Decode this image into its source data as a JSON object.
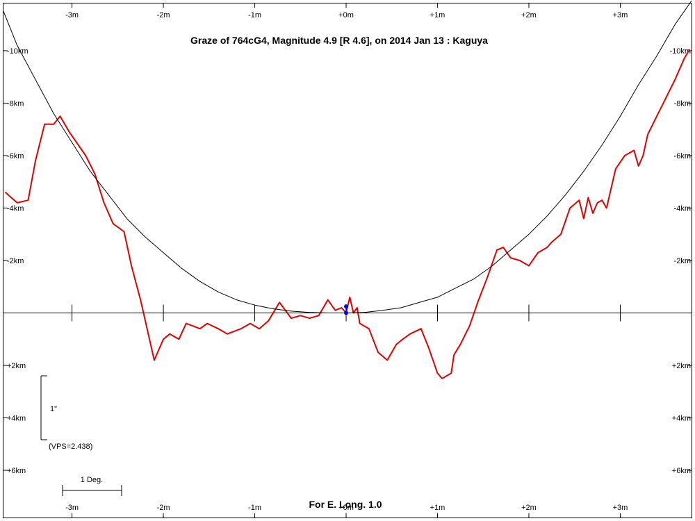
{
  "chart_data": {
    "type": "line",
    "title": "Graze of  764cG4,  Magnitude 4.9 [R 4.6],  on 2014 Jan 13  :  Kaguya",
    "footer": "For E. Long. 1.0",
    "x_tick_labels": [
      "-3m",
      "-2m",
      "-1m",
      "+0m",
      "+1m",
      "+2m",
      "+3m"
    ],
    "x_tick_values": [
      -3,
      -2,
      -1,
      0,
      1,
      2,
      3
    ],
    "xlim": [
      -3.75,
      3.78
    ],
    "y_tick_labels_left": [
      "-10km",
      "-8km",
      "-6km",
      "-4km",
      "-2km",
      "+2km",
      "+4km",
      "+6km"
    ],
    "y_tick_labels_right": [
      "-10km",
      "-8km",
      "-6km",
      "-4km",
      "-2km",
      "+2km",
      "+4km",
      "+6km"
    ],
    "y_tick_values": [
      -10,
      -8,
      -6,
      -4,
      -2,
      2,
      4,
      6
    ],
    "ylim": [
      -11.8,
      7.8
    ],
    "scale_bar": {
      "label": "1\"",
      "vps_label": "(VPS=2.438)"
    },
    "degree_bar": {
      "label": "1 Deg."
    },
    "series": [
      {
        "color": "#e00000",
        "x": [
          -3.73,
          -3.6,
          -3.48,
          -3.4,
          -3.3,
          -3.2,
          -3.13,
          -3.03,
          -2.95,
          -2.85,
          -2.75,
          -2.65,
          -2.55,
          -2.43,
          -2.35,
          -2.25,
          -2.1,
          -2.0,
          -1.93,
          -1.83,
          -1.75,
          -1.6,
          -1.52,
          -1.4,
          -1.3,
          -1.15,
          -1.05,
          -0.95,
          -0.85,
          -0.73,
          -0.6,
          -0.5,
          -0.4,
          -0.3,
          -0.25,
          -0.2,
          -0.12,
          -0.05,
          0.0,
          0.04,
          0.08,
          0.12,
          0.15,
          0.25,
          0.35,
          0.45,
          0.55,
          0.62,
          0.7,
          0.82,
          0.9,
          1.0,
          1.05,
          1.15,
          1.18,
          1.25,
          1.35,
          1.45,
          1.55,
          1.65,
          1.72,
          1.8,
          1.9,
          2.0,
          2.1,
          2.2,
          2.25,
          2.35,
          2.45,
          2.55,
          2.6,
          2.65,
          2.7,
          2.75,
          2.8,
          2.85,
          2.95,
          3.05,
          3.15,
          3.2,
          3.25,
          3.3,
          3.4,
          3.5,
          3.6,
          3.7,
          3.75
        ],
        "y": [
          -4.6,
          -4.2,
          -4.3,
          -5.8,
          -7.2,
          -7.2,
          -7.5,
          -6.9,
          -6.5,
          -6.0,
          -5.3,
          -4.2,
          -3.4,
          -3.1,
          -1.8,
          -0.5,
          1.8,
          1.0,
          0.8,
          1.0,
          0.4,
          0.6,
          0.4,
          0.6,
          0.8,
          0.6,
          0.4,
          0.6,
          0.3,
          -0.4,
          0.2,
          0.1,
          0.2,
          0.1,
          -0.2,
          -0.5,
          -0.1,
          -0.2,
          0.0,
          -0.6,
          0.0,
          -0.2,
          0.4,
          0.6,
          1.5,
          1.8,
          1.2,
          1.0,
          0.8,
          0.6,
          1.3,
          2.3,
          2.5,
          2.3,
          1.6,
          1.2,
          0.5,
          -0.5,
          -1.4,
          -2.4,
          -2.5,
          -2.1,
          -2.0,
          -1.8,
          -2.3,
          -2.5,
          -2.7,
          -3.0,
          -4.0,
          -4.3,
          -3.6,
          -4.4,
          -3.8,
          -4.2,
          -4.3,
          -4.0,
          -5.5,
          -6.0,
          -6.2,
          -5.6,
          -6.0,
          -6.8,
          -7.5,
          -8.2,
          -8.9,
          -9.7,
          -10.0
        ]
      },
      {
        "color": "#000000",
        "note": "limb",
        "x": [
          -3.75,
          -3.6,
          -3.4,
          -3.2,
          -3.0,
          -2.8,
          -2.6,
          -2.4,
          -2.2,
          -2.0,
          -1.8,
          -1.6,
          -1.4,
          -1.2,
          -1.0,
          -0.8,
          -0.6,
          -0.4,
          -0.2,
          0.0,
          0.2,
          0.4,
          0.6,
          0.8,
          1.0,
          1.2,
          1.4,
          1.6,
          1.8,
          2.0,
          2.2,
          2.4,
          2.6,
          2.8,
          3.0,
          3.2,
          3.4,
          3.6,
          3.78
        ],
        "y": [
          -11.5,
          -10.2,
          -8.9,
          -7.6,
          -6.5,
          -5.4,
          -4.5,
          -3.6,
          -2.9,
          -2.3,
          -1.7,
          -1.2,
          -0.8,
          -0.5,
          -0.3,
          -0.16,
          -0.07,
          -0.02,
          0.0,
          0.0,
          -0.02,
          -0.1,
          -0.2,
          -0.4,
          -0.6,
          -0.95,
          -1.3,
          -1.8,
          -2.4,
          -3.0,
          -3.7,
          -4.5,
          -5.4,
          -6.4,
          -7.5,
          -8.7,
          -9.8,
          -11.0,
          -11.9
        ]
      }
    ],
    "markers": {
      "color": "#0000e0",
      "points": [
        {
          "x": 0.0,
          "y": -0.25
        },
        {
          "x": 0.0,
          "y": 0.0
        }
      ]
    }
  }
}
